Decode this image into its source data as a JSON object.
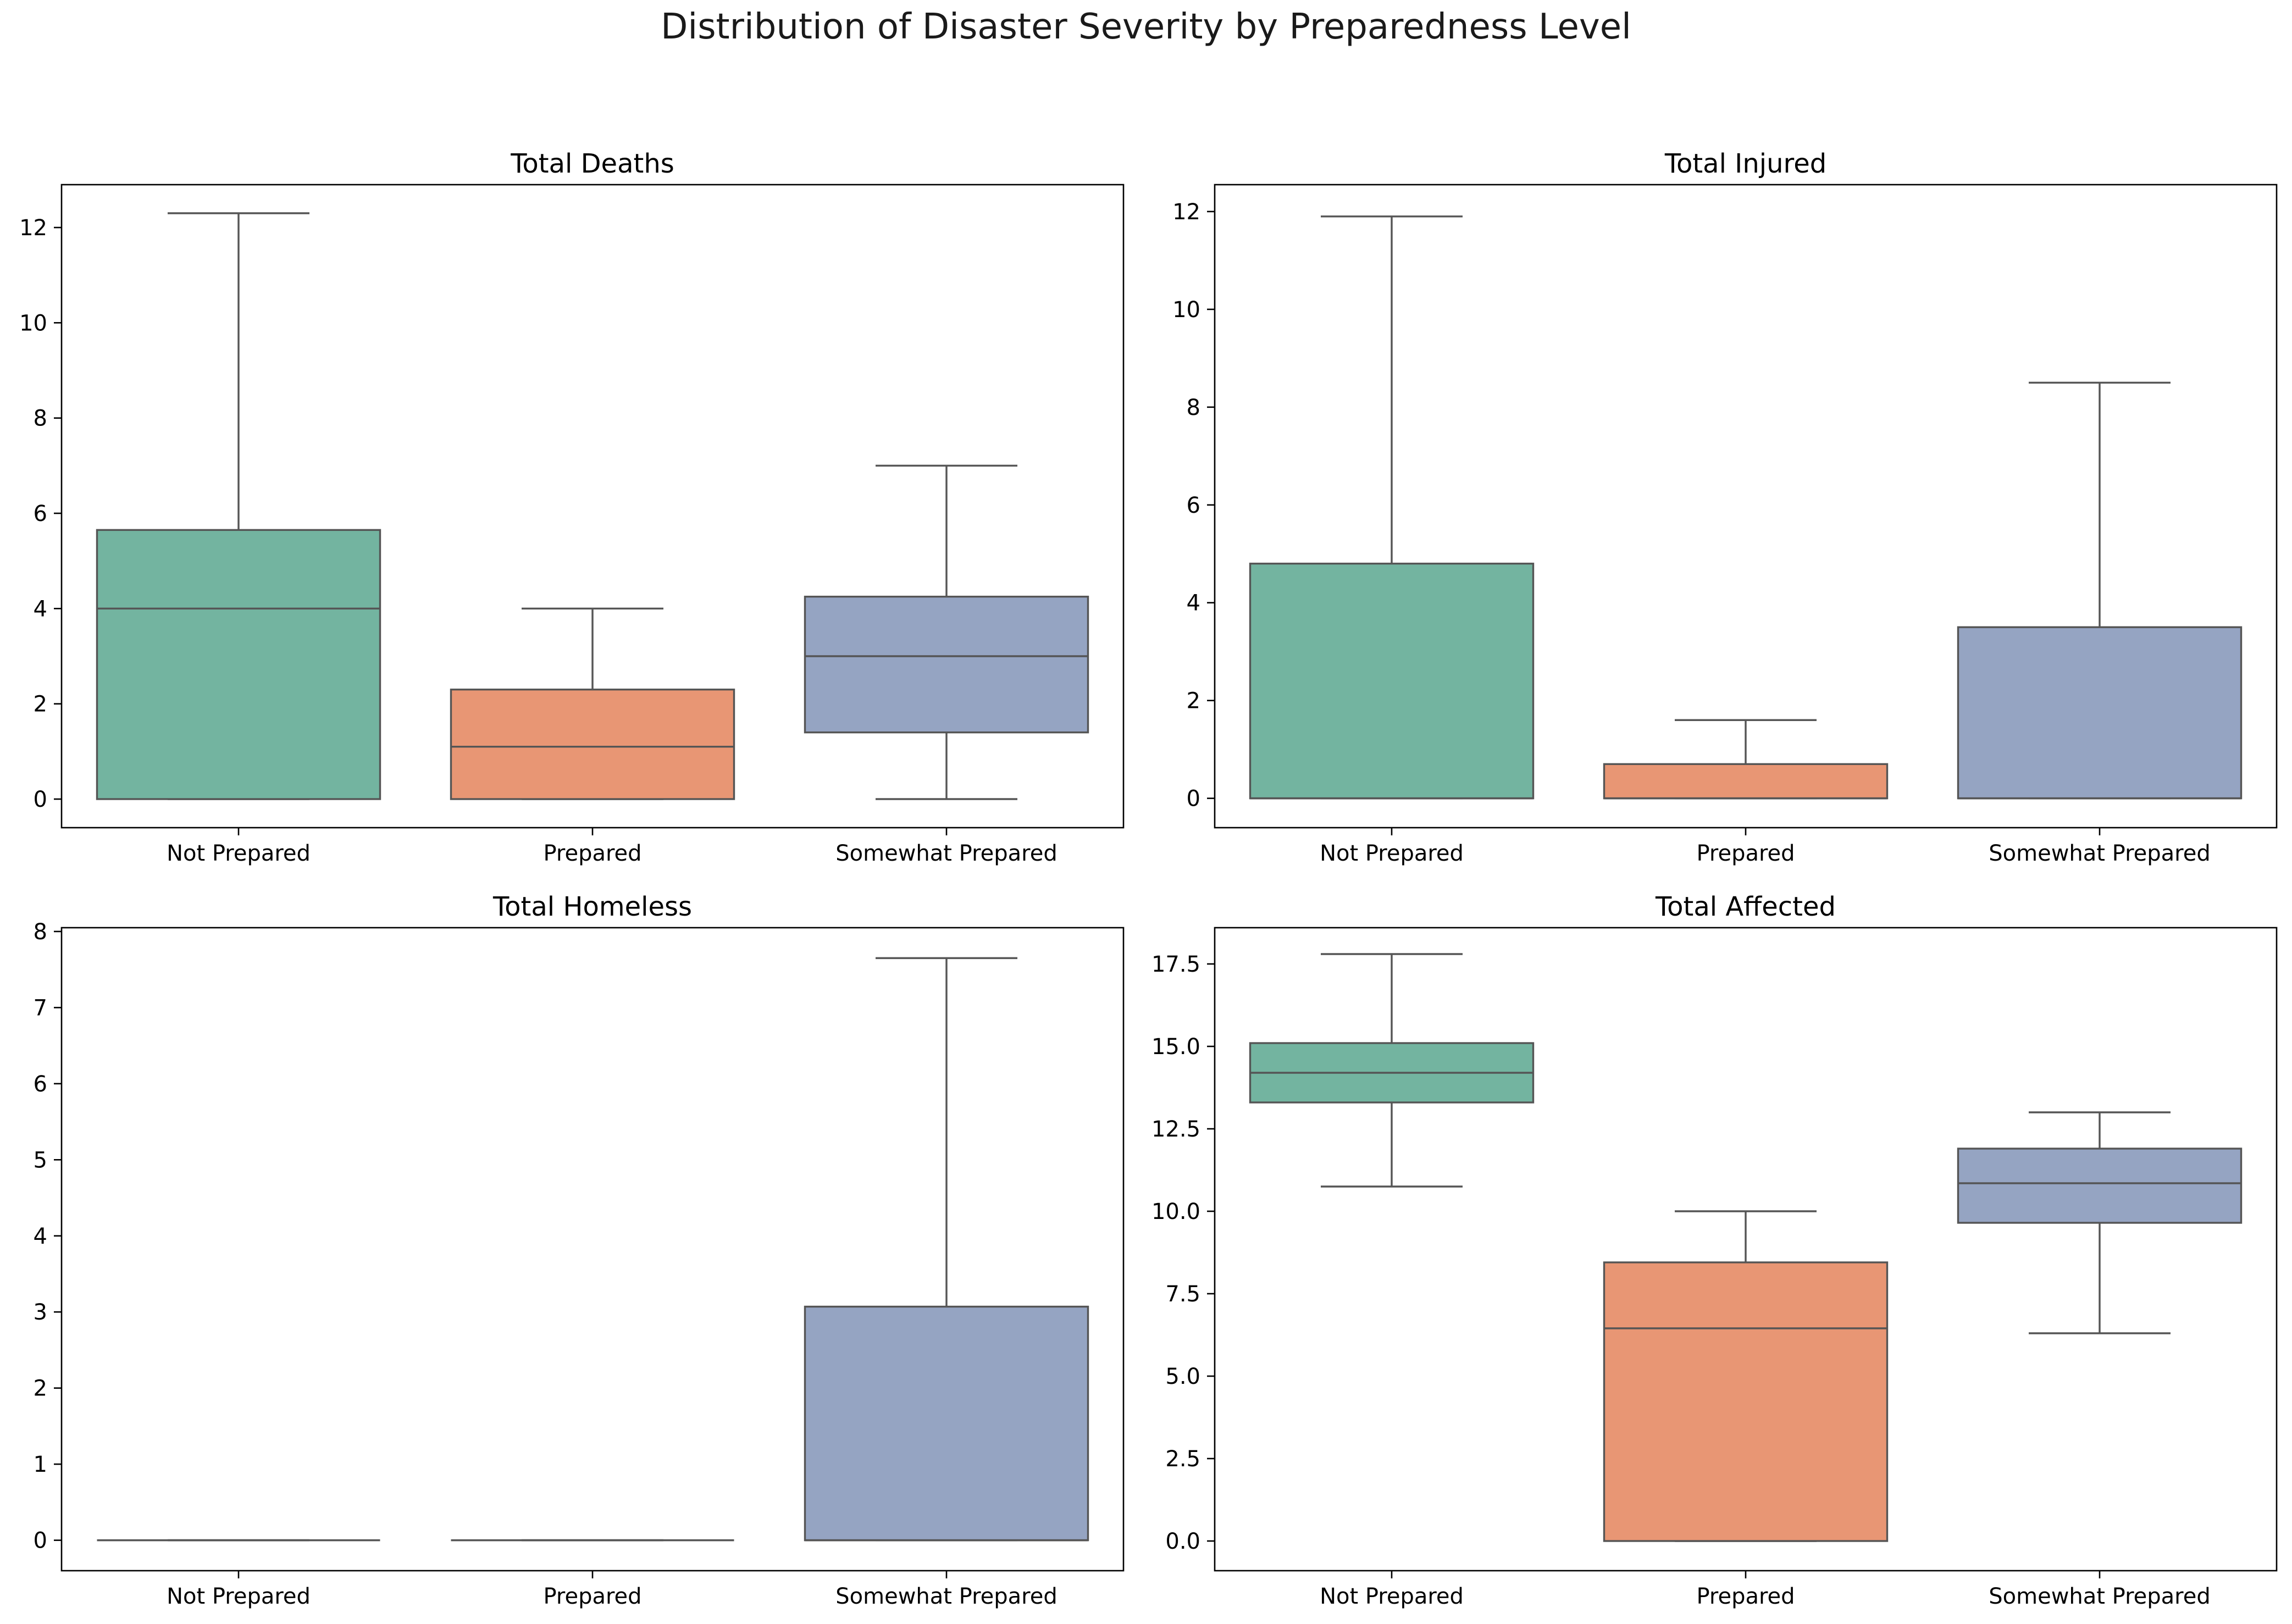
{
  "figure": {
    "title": "Distribution of Disaster Severity by Preparedness Level"
  },
  "colors": {
    "Not Prepared": "#73b4a0",
    "Prepared": "#e89674",
    "Somewhat Prepared": "#95a4c2",
    "box_edge": "#555555",
    "frame": "#000000"
  },
  "chart_data": [
    {
      "type": "box",
      "title": "Total Deaths",
      "xlabel": "",
      "ylabel": "",
      "categories": [
        "Not Prepared",
        "Prepared",
        "Somewhat Prepared"
      ],
      "ylim": [
        -0.6,
        12.9
      ],
      "yticks": [
        0,
        2,
        4,
        6,
        8,
        10,
        12
      ],
      "ytick_labels": [
        "0",
        "2",
        "4",
        "6",
        "8",
        "10",
        "12"
      ],
      "boxes": [
        {
          "category": "Not Prepared",
          "min": 0,
          "q1": 0,
          "median": 4.0,
          "q3": 5.65,
          "max": 12.3
        },
        {
          "category": "Prepared",
          "min": 0,
          "q1": 0,
          "median": 1.1,
          "q3": 2.3,
          "max": 4.0
        },
        {
          "category": "Somewhat Prepared",
          "min": 0,
          "q1": 1.4,
          "median": 3.0,
          "q3": 4.25,
          "max": 7.0
        }
      ]
    },
    {
      "type": "box",
      "title": "Total Injured",
      "xlabel": "",
      "ylabel": "",
      "categories": [
        "Not Prepared",
        "Prepared",
        "Somewhat Prepared"
      ],
      "ylim": [
        -0.6,
        12.55
      ],
      "yticks": [
        0,
        2,
        4,
        6,
        8,
        10,
        12
      ],
      "ytick_labels": [
        "0",
        "2",
        "4",
        "6",
        "8",
        "10",
        "12"
      ],
      "boxes": [
        {
          "category": "Not Prepared",
          "min": 0,
          "q1": 0,
          "median": 0,
          "q3": 4.8,
          "max": 11.9
        },
        {
          "category": "Prepared",
          "min": 0,
          "q1": 0,
          "median": 0,
          "q3": 0.7,
          "max": 1.6
        },
        {
          "category": "Somewhat Prepared",
          "min": 0,
          "q1": 0,
          "median": 0,
          "q3": 3.5,
          "max": 8.5
        }
      ]
    },
    {
      "type": "box",
      "title": "Total Homeless",
      "xlabel": "",
      "ylabel": "",
      "categories": [
        "Not Prepared",
        "Prepared",
        "Somewhat Prepared"
      ],
      "ylim": [
        -0.4,
        8.05
      ],
      "yticks": [
        0,
        1,
        2,
        3,
        4,
        5,
        6,
        7,
        8
      ],
      "ytick_labels": [
        "0",
        "1",
        "2",
        "3",
        "4",
        "5",
        "6",
        "7",
        "8"
      ],
      "boxes": [
        {
          "category": "Not Prepared",
          "min": 0,
          "q1": 0,
          "median": 0,
          "q3": 0,
          "max": 0
        },
        {
          "category": "Prepared",
          "min": 0,
          "q1": 0,
          "median": 0,
          "q3": 0,
          "max": 0
        },
        {
          "category": "Somewhat Prepared",
          "min": 0,
          "q1": 0,
          "median": 0,
          "q3": 3.07,
          "max": 7.65
        }
      ]
    },
    {
      "type": "box",
      "title": "Total Affected",
      "xlabel": "",
      "ylabel": "",
      "categories": [
        "Not Prepared",
        "Prepared",
        "Somewhat Prepared"
      ],
      "ylim": [
        -0.9,
        18.6
      ],
      "yticks": [
        0,
        2.5,
        5,
        7.5,
        10,
        12.5,
        15,
        17.5
      ],
      "ytick_labels": [
        "0.0",
        "2.5",
        "5.0",
        "7.5",
        "10.0",
        "12.5",
        "15.0",
        "17.5"
      ],
      "boxes": [
        {
          "category": "Not Prepared",
          "min": 10.75,
          "q1": 13.3,
          "median": 14.2,
          "q3": 15.1,
          "max": 17.8
        },
        {
          "category": "Prepared",
          "min": 0,
          "q1": 0,
          "median": 6.45,
          "q3": 8.45,
          "max": 10.0
        },
        {
          "category": "Somewhat Prepared",
          "min": 6.3,
          "q1": 9.65,
          "median": 10.85,
          "q3": 11.9,
          "max": 13.0
        }
      ]
    }
  ]
}
